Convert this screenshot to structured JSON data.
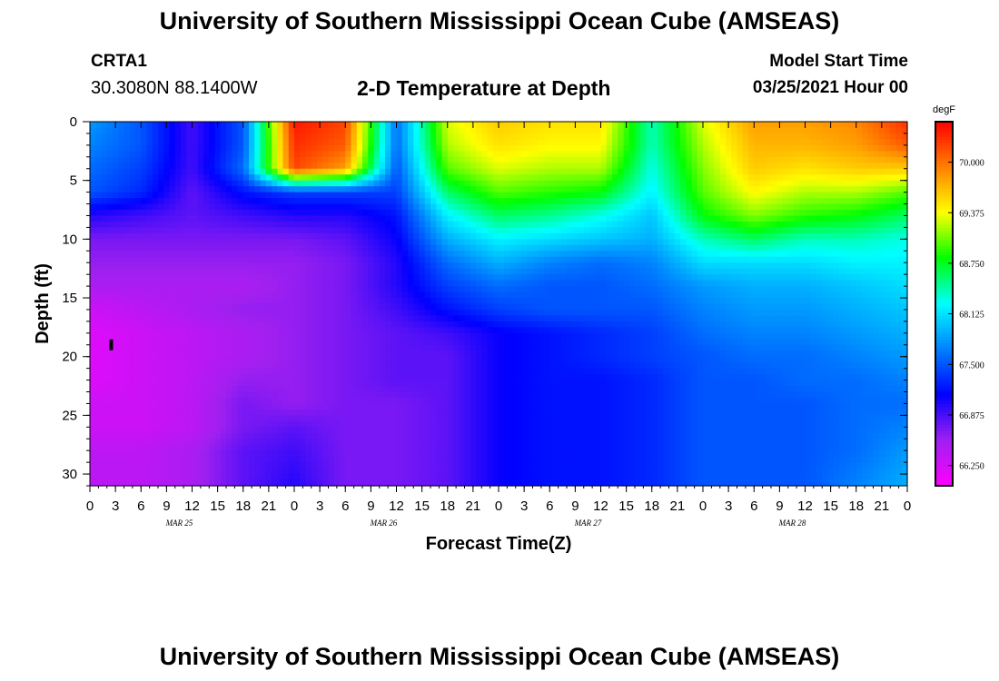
{
  "header": {
    "title": "University of Southern Mississippi Ocean Cube (AMSEAS)",
    "station": "CRTA1",
    "coordinates": "30.3080N  88.1400W",
    "subtitle": "2-D Temperature at Depth",
    "model_start_label": "Model Start Time",
    "model_start_time": "03/25/2021 Hour 00"
  },
  "footer": {
    "title": "University of Southern Mississippi Ocean Cube (AMSEAS)"
  },
  "chart_data": {
    "type": "heatmap",
    "xlabel": "Forecast Time(Z)",
    "ylabel": "Depth (ft)",
    "x_hours": [
      0,
      96
    ],
    "x_tick_labels": [
      "0",
      "3",
      "6",
      "9",
      "12",
      "15",
      "18",
      "21",
      "0",
      "3",
      "6",
      "9",
      "12",
      "15",
      "18",
      "21",
      "0",
      "3",
      "6",
      "9",
      "12",
      "15",
      "18",
      "21",
      "0",
      "3",
      "6",
      "9",
      "12",
      "15",
      "18",
      "21",
      "0"
    ],
    "date_labels": [
      "MAR 25",
      "MAR 26",
      "MAR 27",
      "MAR 28"
    ],
    "ylim": [
      0,
      31
    ],
    "y_ticks": [
      0,
      5,
      10,
      15,
      20,
      25,
      30
    ],
    "y_reversed": true,
    "colorbar": {
      "unit": "degF",
      "range": [
        66.0,
        70.5
      ],
      "tick_labels": [
        "70.000",
        "69.375",
        "68.750",
        "68.125",
        "67.500",
        "66.875",
        "66.250"
      ],
      "colors": [
        "#ff00ff",
        "#a020f0",
        "#0000ff",
        "#0080ff",
        "#00ffff",
        "#00ff00",
        "#ffff00",
        "#ff8000",
        "#ff0000"
      ]
    },
    "depths": [
      0,
      2,
      4,
      6,
      8,
      10,
      12,
      14,
      16,
      18,
      20,
      22,
      24,
      26,
      28,
      31
    ],
    "times": [
      0,
      6,
      12,
      18,
      24,
      30,
      36,
      42,
      48,
      54,
      60,
      66,
      72,
      78,
      84,
      90,
      96
    ],
    "temperature": [
      [
        67.8,
        67.5,
        66.9,
        67.5,
        70.4,
        70.2,
        67.6,
        69.3,
        69.6,
        69.5,
        69.5,
        68.4,
        69.3,
        69.8,
        69.8,
        69.9,
        70.3
      ],
      [
        67.7,
        67.5,
        66.9,
        67.5,
        70.3,
        70.1,
        67.6,
        69.2,
        69.5,
        69.4,
        69.4,
        68.4,
        69.2,
        69.7,
        69.7,
        69.8,
        70.1
      ],
      [
        67.6,
        67.4,
        66.9,
        67.6,
        70.2,
        69.8,
        67.5,
        69.0,
        69.3,
        69.2,
        69.2,
        68.3,
        69.1,
        69.6,
        69.5,
        69.6,
        69.6
      ],
      [
        67.5,
        67.3,
        66.8,
        67.2,
        67.4,
        67.4,
        67.4,
        68.6,
        69.0,
        68.9,
        68.8,
        68.2,
        69.0,
        69.4,
        69.2,
        69.2,
        69.0
      ],
      [
        67.0,
        66.9,
        66.8,
        66.9,
        67.0,
        67.0,
        67.2,
        68.2,
        68.6,
        68.5,
        68.3,
        68.0,
        68.8,
        69.1,
        68.9,
        68.8,
        68.6
      ],
      [
        66.7,
        66.7,
        66.7,
        66.7,
        66.7,
        66.8,
        67.1,
        67.9,
        68.2,
        68.1,
        68.0,
        67.9,
        68.4,
        68.6,
        68.4,
        68.4,
        68.3
      ],
      [
        66.6,
        66.6,
        66.6,
        66.6,
        66.6,
        66.7,
        67.0,
        67.6,
        67.9,
        67.7,
        67.6,
        67.7,
        68.1,
        68.1,
        68.1,
        68.2,
        68.2
      ],
      [
        66.5,
        66.5,
        66.5,
        66.5,
        66.6,
        66.7,
        67.0,
        67.4,
        67.6,
        67.5,
        67.5,
        67.6,
        67.8,
        67.9,
        67.9,
        68.0,
        68.1
      ],
      [
        66.3,
        66.4,
        66.5,
        66.6,
        66.6,
        66.7,
        66.9,
        67.2,
        67.4,
        67.5,
        67.5,
        67.5,
        67.7,
        67.8,
        67.8,
        67.9,
        68.0
      ],
      [
        66.2,
        66.3,
        66.4,
        66.5,
        66.6,
        66.7,
        66.8,
        66.9,
        67.1,
        67.2,
        67.3,
        67.4,
        67.6,
        67.7,
        67.7,
        67.8,
        67.9
      ],
      [
        66.2,
        66.3,
        66.4,
        66.5,
        66.6,
        66.7,
        66.8,
        66.8,
        67.1,
        67.2,
        67.3,
        67.4,
        67.5,
        67.6,
        67.6,
        67.7,
        67.8
      ],
      [
        66.2,
        66.3,
        66.4,
        66.6,
        66.6,
        66.7,
        66.8,
        66.8,
        67.1,
        67.2,
        67.2,
        67.3,
        67.5,
        67.5,
        67.6,
        67.6,
        67.7
      ],
      [
        66.3,
        66.3,
        66.4,
        66.7,
        66.6,
        66.7,
        66.7,
        66.8,
        67.1,
        67.2,
        67.2,
        67.3,
        67.5,
        67.5,
        67.5,
        67.6,
        67.6
      ],
      [
        66.3,
        66.3,
        66.4,
        66.7,
        66.8,
        66.7,
        66.7,
        66.8,
        67.1,
        67.2,
        67.2,
        67.3,
        67.5,
        67.5,
        67.5,
        67.6,
        67.7
      ],
      [
        66.4,
        66.4,
        66.5,
        66.8,
        66.9,
        66.7,
        66.7,
        66.8,
        67.1,
        67.2,
        67.2,
        67.3,
        67.5,
        67.5,
        67.5,
        67.6,
        67.8
      ],
      [
        66.4,
        66.4,
        66.5,
        66.8,
        67.0,
        66.7,
        66.7,
        66.8,
        67.1,
        67.2,
        67.2,
        67.3,
        67.5,
        67.5,
        67.5,
        67.7,
        67.9
      ]
    ],
    "marker": {
      "hour": 2.5,
      "depth": 19
    }
  }
}
